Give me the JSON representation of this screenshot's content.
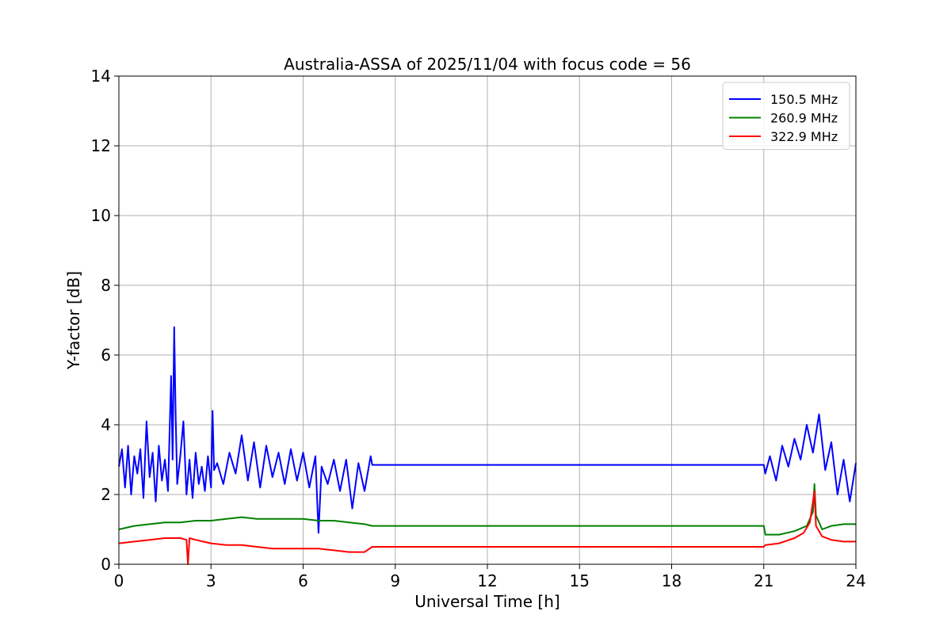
{
  "chart_data": {
    "type": "line",
    "title": "Australia-ASSA of 2025/11/04 with focus code = 56",
    "xlabel": "Universal Time [h]",
    "ylabel": "Y-factor [dB]",
    "xlim": [
      0,
      24
    ],
    "ylim": [
      0,
      14
    ],
    "xticks": [
      0,
      3,
      6,
      9,
      12,
      15,
      18,
      21,
      24
    ],
    "yticks": [
      0,
      2,
      4,
      6,
      8,
      10,
      12,
      14
    ],
    "grid": true,
    "legend_position": "top-right",
    "series": [
      {
        "name": "150.5 MHz",
        "color": "#0000ff",
        "x": [
          0,
          0.1,
          0.2,
          0.3,
          0.4,
          0.5,
          0.6,
          0.7,
          0.8,
          0.9,
          1.0,
          1.1,
          1.2,
          1.3,
          1.4,
          1.5,
          1.6,
          1.7,
          1.75,
          1.8,
          1.85,
          1.9,
          2.0,
          2.1,
          2.2,
          2.3,
          2.4,
          2.5,
          2.6,
          2.7,
          2.8,
          2.9,
          3.0,
          3.05,
          3.1,
          3.2,
          3.4,
          3.6,
          3.8,
          4.0,
          4.2,
          4.4,
          4.6,
          4.8,
          5.0,
          5.2,
          5.4,
          5.6,
          5.8,
          6.0,
          6.2,
          6.4,
          6.5,
          6.6,
          6.8,
          7.0,
          7.2,
          7.4,
          7.6,
          7.8,
          8.0,
          8.2,
          8.25,
          21.0,
          21.05,
          21.2,
          21.4,
          21.6,
          21.8,
          22.0,
          22.2,
          22.4,
          22.6,
          22.8,
          23.0,
          23.2,
          23.4,
          23.6,
          23.8,
          24.0
        ],
        "y": [
          2.8,
          3.3,
          2.2,
          3.4,
          2.0,
          3.1,
          2.6,
          3.3,
          1.9,
          4.1,
          2.5,
          3.2,
          1.8,
          3.4,
          2.4,
          3.0,
          2.1,
          5.4,
          3.0,
          6.8,
          4.2,
          2.3,
          3.1,
          4.1,
          2.0,
          3.0,
          1.9,
          3.2,
          2.3,
          2.8,
          2.1,
          3.1,
          2.2,
          4.4,
          2.7,
          2.9,
          2.3,
          3.2,
          2.6,
          3.7,
          2.4,
          3.5,
          2.2,
          3.4,
          2.5,
          3.2,
          2.3,
          3.3,
          2.4,
          3.2,
          2.2,
          3.1,
          0.9,
          2.8,
          2.3,
          3.0,
          2.1,
          3.0,
          1.6,
          2.9,
          2.1,
          3.1,
          2.85,
          2.85,
          2.6,
          3.1,
          2.4,
          3.4,
          2.8,
          3.6,
          3.0,
          4.0,
          3.2,
          4.3,
          2.7,
          3.5,
          2.0,
          3.0,
          1.8,
          2.9
        ]
      },
      {
        "name": "260.9 MHz",
        "color": "#008000",
        "x": [
          0,
          0.5,
          1.0,
          1.5,
          2.0,
          2.5,
          3.0,
          3.5,
          4.0,
          4.5,
          5.0,
          5.5,
          6.0,
          6.5,
          7.0,
          7.5,
          8.0,
          8.25,
          21.0,
          21.05,
          21.5,
          22.0,
          22.4,
          22.6,
          22.65,
          22.7,
          22.9,
          23.2,
          23.6,
          24.0
        ],
        "y": [
          1.0,
          1.1,
          1.15,
          1.2,
          1.2,
          1.25,
          1.25,
          1.3,
          1.35,
          1.3,
          1.3,
          1.3,
          1.3,
          1.25,
          1.25,
          1.2,
          1.15,
          1.1,
          1.1,
          0.85,
          0.85,
          0.95,
          1.1,
          1.5,
          2.3,
          1.4,
          1.0,
          1.1,
          1.15,
          1.15
        ]
      },
      {
        "name": "322.9 MHz",
        "color": "#ff0000",
        "x": [
          0,
          0.5,
          1.0,
          1.5,
          2.0,
          2.2,
          2.25,
          2.3,
          2.5,
          3.0,
          3.5,
          4.0,
          4.5,
          5.0,
          5.5,
          6.0,
          6.5,
          7.0,
          7.5,
          8.0,
          8.25,
          21.0,
          21.05,
          21.5,
          22.0,
          22.3,
          22.5,
          22.6,
          22.65,
          22.7,
          22.9,
          23.2,
          23.6,
          24.0
        ],
        "y": [
          0.6,
          0.65,
          0.7,
          0.75,
          0.75,
          0.7,
          0.0,
          0.75,
          0.7,
          0.6,
          0.55,
          0.55,
          0.5,
          0.45,
          0.45,
          0.45,
          0.45,
          0.4,
          0.35,
          0.35,
          0.5,
          0.5,
          0.55,
          0.6,
          0.75,
          0.9,
          1.2,
          1.8,
          2.1,
          1.1,
          0.8,
          0.7,
          0.65,
          0.65
        ]
      }
    ]
  }
}
